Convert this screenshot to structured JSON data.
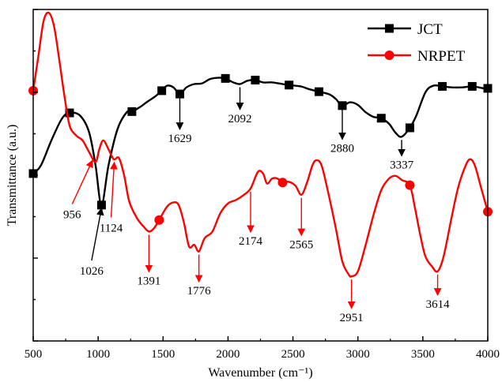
{
  "chart_data": {
    "type": "line",
    "xlabel": "Wavenumber (cm⁻¹)",
    "ylabel": "Transmittance (a.u.)",
    "xlim": [
      500,
      4000
    ],
    "ylim": [
      0,
      1
    ],
    "y_ticks_labeled": false,
    "x_ticks": [
      500,
      1000,
      1500,
      2000,
      2500,
      3000,
      3500,
      4000
    ],
    "legend": {
      "placement": "top-right"
    },
    "series": [
      {
        "name": "JCT",
        "color": "#000000",
        "marker": "square",
        "x": [
          500,
          560,
          640,
          720,
          780,
          860,
          930,
          980,
          1026,
          1080,
          1150,
          1220,
          1260,
          1320,
          1380,
          1440,
          1490,
          1530,
          1580,
          1629,
          1680,
          1740,
          1800,
          1860,
          1920,
          1980,
          2040,
          2092,
          2150,
          2210,
          2270,
          2340,
          2420,
          2470,
          2560,
          2620,
          2700,
          2780,
          2830,
          2880,
          2940,
          3000,
          3060,
          3120,
          3180,
          3240,
          3290,
          3337,
          3400,
          3450,
          3520,
          3580,
          3650,
          3720,
          3800,
          3880,
          3930,
          3970,
          4000
        ],
        "y": [
          0.505,
          0.53,
          0.605,
          0.67,
          0.688,
          0.68,
          0.63,
          0.53,
          0.41,
          0.53,
          0.64,
          0.69,
          0.692,
          0.705,
          0.722,
          0.738,
          0.755,
          0.77,
          0.765,
          0.745,
          0.765,
          0.775,
          0.777,
          0.79,
          0.794,
          0.792,
          0.78,
          0.775,
          0.785,
          0.787,
          0.78,
          0.78,
          0.775,
          0.772,
          0.768,
          0.76,
          0.752,
          0.744,
          0.73,
          0.71,
          0.72,
          0.712,
          0.69,
          0.676,
          0.672,
          0.655,
          0.628,
          0.616,
          0.643,
          0.68,
          0.75,
          0.77,
          0.768,
          0.765,
          0.765,
          0.768,
          0.765,
          0.762,
          0.762
        ],
        "markers_x": [
          500,
          780,
          1026,
          1260,
          1490,
          1629,
          1980,
          2210,
          2470,
          2700,
          2880,
          3180,
          3400,
          3650,
          3880,
          4000
        ]
      },
      {
        "name": "NRPET",
        "color": "#ff0000",
        "marker": "circle",
        "x": [
          500,
          540,
          580,
          620,
          660,
          700,
          740,
          780,
          830,
          880,
          930,
          980,
          1010,
          1040,
          1080,
          1120,
          1160,
          1200,
          1240,
          1300,
          1350,
          1391,
          1430,
          1470,
          1530,
          1580,
          1620,
          1660,
          1700,
          1740,
          1776,
          1820,
          1880,
          1940,
          2000,
          2060,
          2120,
          2174,
          2230,
          2270,
          2300,
          2340,
          2380,
          2420,
          2470,
          2520,
          2565,
          2610,
          2650,
          2680,
          2720,
          2770,
          2830,
          2880,
          2930,
          2951,
          3000,
          3060,
          3120,
          3180,
          3240,
          3290,
          3340,
          3400,
          3440,
          3480,
          3520,
          3570,
          3614,
          3660,
          3720,
          3770,
          3820,
          3860,
          3900,
          3950,
          4000
        ],
        "y": [
          0.755,
          0.86,
          0.965,
          0.99,
          0.95,
          0.85,
          0.74,
          0.65,
          0.62,
          0.605,
          0.57,
          0.54,
          0.58,
          0.605,
          0.578,
          0.548,
          0.552,
          0.5,
          0.42,
          0.37,
          0.345,
          0.33,
          0.34,
          0.365,
          0.405,
          0.418,
          0.41,
          0.358,
          0.285,
          0.29,
          0.27,
          0.31,
          0.33,
          0.385,
          0.415,
          0.425,
          0.44,
          0.46,
          0.51,
          0.505,
          0.475,
          0.49,
          0.49,
          0.478,
          0.48,
          0.468,
          0.441,
          0.48,
          0.53,
          0.545,
          0.53,
          0.45,
          0.34,
          0.24,
          0.2,
          0.195,
          0.21,
          0.29,
          0.38,
          0.455,
          0.49,
          0.498,
          0.485,
          0.47,
          0.4,
          0.32,
          0.255,
          0.225,
          0.21,
          0.255,
          0.37,
          0.46,
          0.52,
          0.548,
          0.53,
          0.46,
          0.39
        ],
        "markers_x": [
          500,
          1470,
          2420,
          3400,
          4000
        ]
      }
    ],
    "annotations": [
      {
        "label": "JCT",
        "series": "JCT",
        "text": "1629",
        "x": 1629
      },
      {
        "label": "JCT",
        "series": "JCT",
        "text": "2092",
        "x": 2092
      },
      {
        "label": "JCT",
        "series": "JCT",
        "text": "2880",
        "x": 2880
      },
      {
        "label": "JCT",
        "series": "JCT",
        "text": "3337",
        "x": 3337
      },
      {
        "label": "JCT",
        "series": "JCT",
        "text": "1026",
        "x": 1026
      },
      {
        "label": "NRPET",
        "series": "NRPET",
        "text": "956",
        "x": 956
      },
      {
        "label": "NRPET",
        "series": "NRPET",
        "text": "1124",
        "x": 1124
      },
      {
        "label": "NRPET",
        "series": "NRPET",
        "text": "1391",
        "x": 1391
      },
      {
        "label": "NRPET",
        "series": "NRPET",
        "text": "1776",
        "x": 1776
      },
      {
        "label": "NRPET",
        "series": "NRPET",
        "text": "2174",
        "x": 2174
      },
      {
        "label": "NRPET",
        "series": "NRPET",
        "text": "2565",
        "x": 2565
      },
      {
        "label": "NRPET",
        "series": "NRPET",
        "text": "2951",
        "x": 2951
      },
      {
        "label": "NRPET",
        "series": "NRPET",
        "text": "3614",
        "x": 3614
      }
    ]
  }
}
